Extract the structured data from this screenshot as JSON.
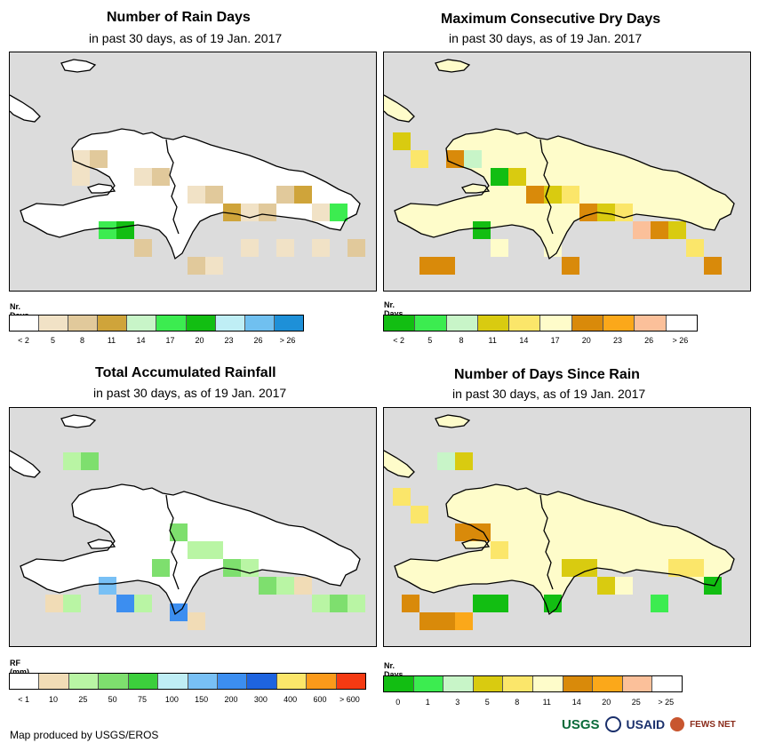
{
  "credit": "Map produced by USGS/EROS",
  "logos": {
    "usgs": "USGS",
    "usaid": "USAID",
    "fews": "FEWS NET"
  },
  "panels": [
    {
      "title": "Number of Rain Days",
      "subtitle": "in past 30 days, as of 19 Jan. 2017",
      "legend_title": "Nr. Days",
      "legend_colors": [
        "#ffffff",
        "#f1e2c6",
        "#e1c99b",
        "#cfa43a",
        "#c8f5c8",
        "#3cec50",
        "#12be12",
        "#bfeef5",
        "#70c0f0",
        "#1e90d8"
      ],
      "legend_labels": [
        "< 2",
        "5",
        "8",
        "11",
        "14",
        "17",
        "20",
        "23",
        "26",
        "> 26"
      ]
    },
    {
      "title": "Maximum Consecutive Dry Days",
      "subtitle": "in past 30 days, as of 19 Jan. 2017",
      "legend_title": "Nr. Days",
      "legend_colors": [
        "#12be12",
        "#3cec50",
        "#c8f5c8",
        "#d9cb10",
        "#fbe66a",
        "#fefcca",
        "#d98a0a",
        "#fba81a",
        "#fbc09a",
        "#ffffff"
      ],
      "legend_labels": [
        "< 2",
        "5",
        "8",
        "11",
        "14",
        "17",
        "20",
        "23",
        "26",
        "> 26"
      ]
    },
    {
      "title": "Total Accumulated Rainfall",
      "subtitle": "in past 30 days, as of 19 Jan. 2017",
      "legend_title": "RF (mm)",
      "legend_colors": [
        "#ffffff",
        "#f1dcb6",
        "#b9f5a4",
        "#7edf6e",
        "#3ccf3c",
        "#bfeef5",
        "#78c0f5",
        "#3c8ef0",
        "#1e64e0",
        "#fbe66a",
        "#fb9a1a",
        "#f53a12"
      ],
      "legend_labels": [
        "< 1",
        "10",
        "25",
        "50",
        "75",
        "100",
        "150",
        "200",
        "300",
        "400",
        "600",
        "> 600"
      ]
    },
    {
      "title": "Number of Days Since Rain",
      "subtitle": "in past 30 days, as of 19 Jan. 2017",
      "legend_title": "Nr. Days",
      "legend_colors": [
        "#12be12",
        "#3cec50",
        "#c8f5c8",
        "#d9cb10",
        "#fbe66a",
        "#fefcca",
        "#d98a0a",
        "#fba81a",
        "#fbc09a",
        "#ffffff"
      ],
      "legend_labels": [
        "0",
        "1",
        "3",
        "5",
        "8",
        "11",
        "14",
        "20",
        "25",
        "> 25"
      ]
    }
  ],
  "colors": {
    "sea": "#dcdcdc",
    "outline": "#000000"
  }
}
